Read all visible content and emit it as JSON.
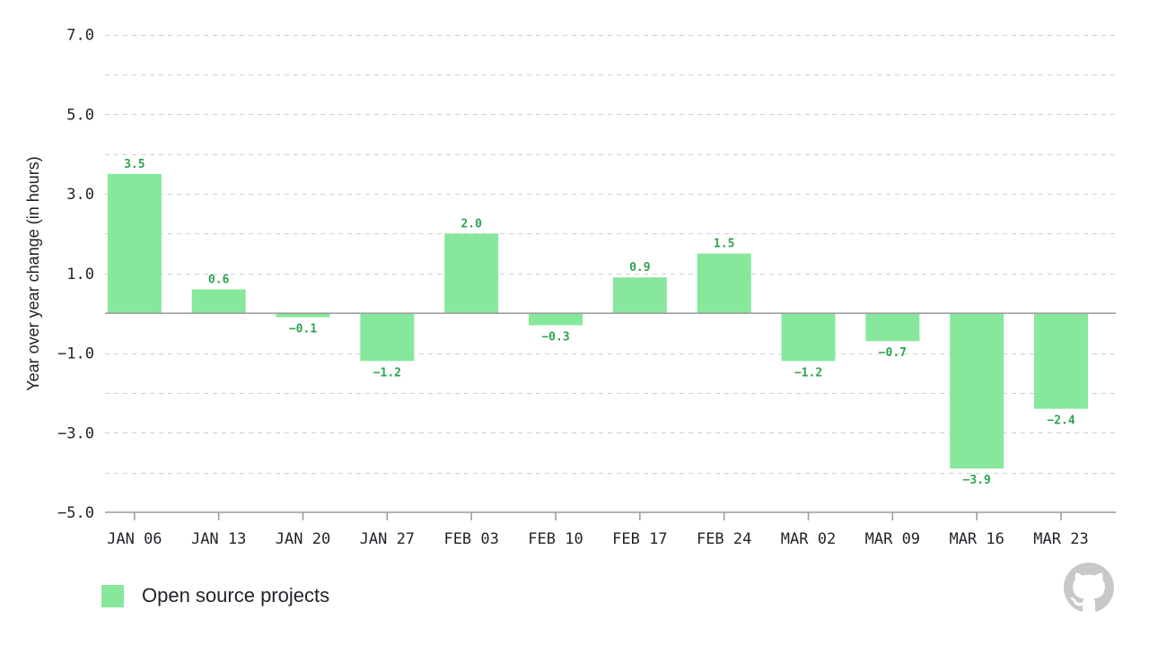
{
  "chart_data": {
    "type": "bar",
    "title": "",
    "xlabel": "",
    "ylabel": "Year over year change (in hours)",
    "ylim": [
      -5.0,
      7.0
    ],
    "yticks": [
      7.0,
      5.0,
      3.0,
      1.0,
      -1.0,
      -3.0,
      -5.0
    ],
    "ytick_labels": [
      "7.0",
      "5.0",
      "3.0",
      "1.0",
      "−1.0",
      "−3.0",
      "−5.0"
    ],
    "grid": true,
    "categories": [
      "JAN 06",
      "JAN 13",
      "JAN 20",
      "JAN 27",
      "FEB 03",
      "FEB 10",
      "FEB 17",
      "FEB 24",
      "MAR 02",
      "MAR 09",
      "MAR 16",
      "MAR 23"
    ],
    "series": [
      {
        "name": "Open source projects",
        "color": "#87e89b",
        "label_color": "#2da44e",
        "values": [
          3.5,
          0.6,
          -0.1,
          -1.2,
          2.0,
          -0.3,
          0.9,
          1.5,
          -1.2,
          -0.7,
          -3.9,
          -2.4
        ],
        "labels": [
          "3.5",
          "0.6",
          "−0.1",
          "−1.2",
          "2.0",
          "−0.3",
          "0.9",
          "1.5",
          "−1.2",
          "−0.7",
          "−3.9",
          "−2.4"
        ]
      }
    ],
    "legend_position": "bottom-left"
  },
  "legend": {
    "label": "Open source projects"
  },
  "logo": {
    "icon": "github-icon"
  }
}
